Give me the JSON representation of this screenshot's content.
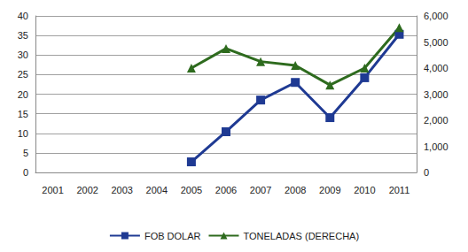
{
  "chart_data": {
    "type": "line",
    "categories": [
      "2001",
      "2002",
      "2003",
      "2004",
      "2005",
      "2006",
      "2007",
      "2008",
      "2009",
      "2010",
      "2011"
    ],
    "series": [
      {
        "name": "FOB DOLAR",
        "color": "#1f3a93",
        "marker": "square",
        "values": [
          null,
          null,
          null,
          null,
          2.7,
          10.4,
          18.5,
          23,
          14,
          24.2,
          35.3
        ]
      },
      {
        "name": "TONELADAS (DERECHA)",
        "color": "#2e6b1e",
        "marker": "triangle",
        "axis": "y2",
        "values": [
          null,
          null,
          null,
          null,
          4000,
          4750,
          4250,
          4100,
          3350,
          4000,
          5550
        ]
      }
    ],
    "ylim": [
      0,
      40
    ],
    "yticks": [
      0,
      5,
      10,
      15,
      20,
      25,
      30,
      35,
      40
    ],
    "y2lim": [
      0,
      6000
    ],
    "y2ticks": [
      0,
      1000,
      2000,
      3000,
      4000,
      5000,
      6000
    ],
    "grid": true,
    "legend": "bottom"
  }
}
